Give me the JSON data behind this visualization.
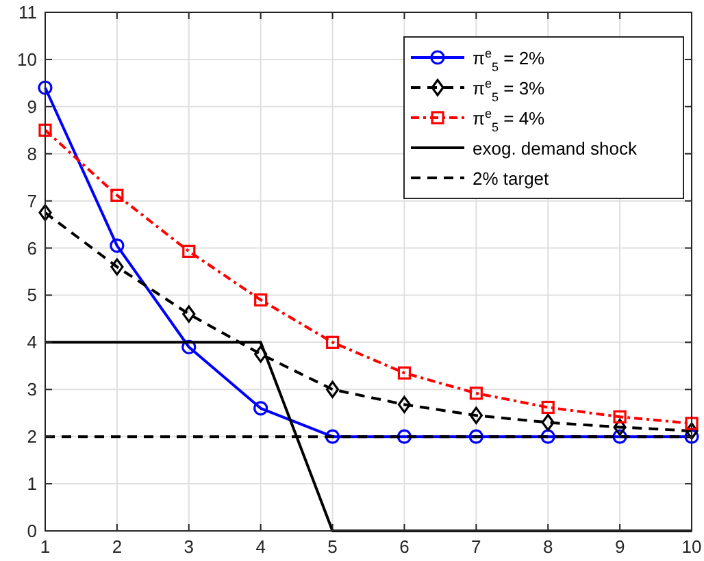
{
  "chart_data": {
    "type": "line",
    "x": [
      1,
      2,
      3,
      4,
      5,
      6,
      7,
      8,
      9,
      10
    ],
    "series": [
      {
        "name": "π$^{e}$$_{5}$ = 2%",
        "color": "#0000ff",
        "marker": "circle",
        "line_style": "solid",
        "values": [
          9.4,
          6.05,
          3.9,
          2.6,
          2.0,
          2.0,
          2.0,
          2.0,
          2.0,
          2.0
        ]
      },
      {
        "name": "π$^{e}$$_{5}$ = 3%",
        "color": "#000000",
        "marker": "diamond",
        "line_style": "dashed",
        "values": [
          6.75,
          5.6,
          4.6,
          3.75,
          3.0,
          2.68,
          2.45,
          2.3,
          2.2,
          2.12
        ]
      },
      {
        "name": "π$^{e}$$_{5}$ = 4%",
        "color": "#ff0000",
        "marker": "square",
        "line_style": "dashdot",
        "values": [
          8.5,
          7.12,
          5.93,
          4.9,
          4.0,
          3.35,
          2.92,
          2.62,
          2.42,
          2.28
        ]
      },
      {
        "name": "exog. demand shock",
        "color": "#000000",
        "marker": "none",
        "line_style": "solid",
        "values": [
          4,
          4,
          4,
          4,
          0,
          0,
          0,
          0,
          0,
          0
        ]
      },
      {
        "name": "2% target",
        "color": "#000000",
        "marker": "none",
        "line_style": "dashed",
        "values": [
          2,
          2,
          2,
          2,
          2,
          2,
          2,
          2,
          2,
          2
        ]
      }
    ],
    "xlim": [
      1,
      10
    ],
    "xticks": [
      1,
      2,
      3,
      4,
      5,
      6,
      7,
      8,
      9,
      10
    ],
    "ylim": [
      0,
      11
    ],
    "yticks": [
      0,
      1,
      2,
      3,
      4,
      5,
      6,
      7,
      8,
      9,
      10,
      11
    ],
    "grid": true,
    "legend": "top right"
  }
}
